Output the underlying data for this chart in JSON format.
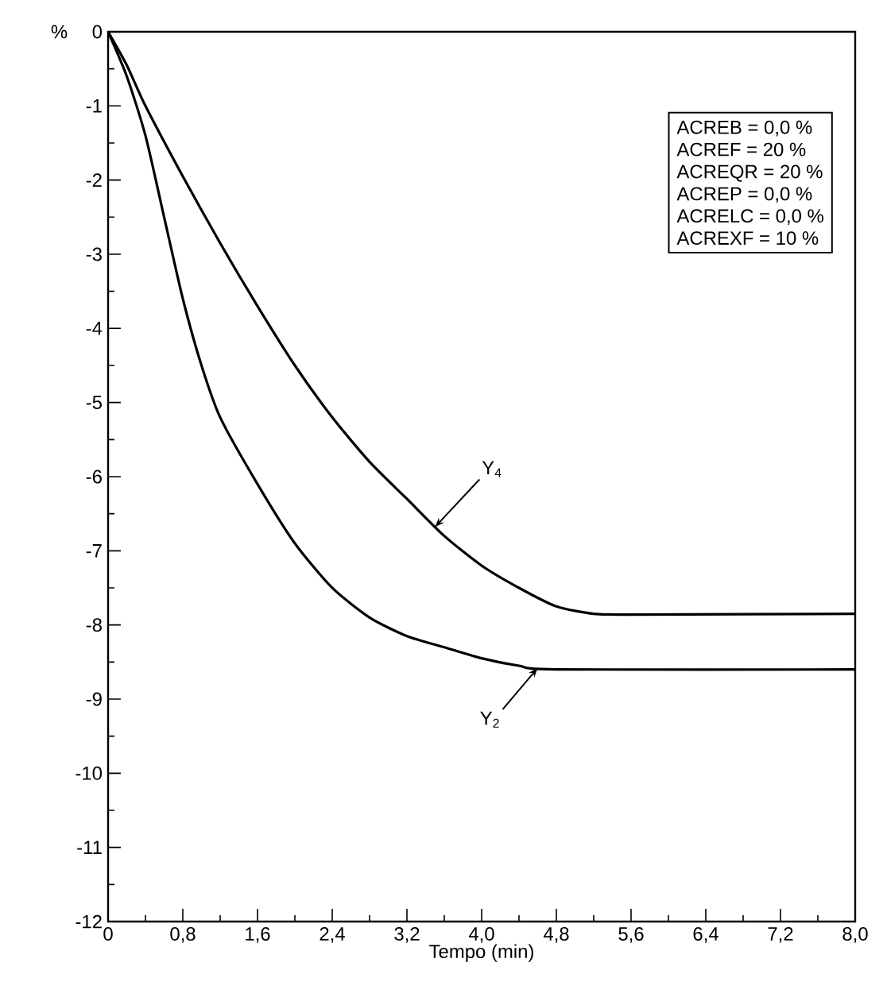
{
  "chart_data": {
    "type": "line",
    "xlabel": "Tempo (min)",
    "ylabel": "%",
    "xlim": [
      0,
      8.0
    ],
    "ylim": [
      -12,
      0
    ],
    "xticks": [
      0,
      {
        "value": 0.8,
        "label": "0,8"
      },
      {
        "value": 1.6,
        "label": "1,6"
      },
      {
        "value": 2.4,
        "label": "2,4"
      },
      {
        "value": 3.2,
        "label": "3,2"
      },
      {
        "value": 4.0,
        "label": "4,0"
      },
      {
        "value": 4.8,
        "label": "4,8"
      },
      {
        "value": 5.6,
        "label": "5,6"
      },
      {
        "value": 6.4,
        "label": "6,4"
      },
      {
        "value": 7.2,
        "label": "7,2"
      },
      {
        "value": 8.0,
        "label": "8,0"
      }
    ],
    "yticks": [
      0,
      -1,
      -2,
      -3,
      -4,
      -5,
      -6,
      -7,
      -8,
      -9,
      -10,
      -11,
      -12
    ],
    "marker": "none",
    "line_style": "solid",
    "series": [
      {
        "color": "#000000",
        "x": [
          0,
          0.2,
          0.4,
          0.8,
          1.2,
          1.6,
          2.0,
          2.4,
          2.8,
          3.2,
          3.6,
          4.0,
          4.4,
          4.8,
          5.2,
          5.6,
          8.0
        ],
        "values": [
          0,
          -0.45,
          -1.0,
          -1.95,
          -2.85,
          -3.7,
          -4.5,
          -5.2,
          -5.8,
          -6.3,
          -6.8,
          -7.2,
          -7.5,
          -7.75,
          -7.85,
          -7.86,
          -7.85
        ]
      },
      {
        "color": "#000000",
        "x": [
          0,
          0.2,
          0.4,
          0.6,
          0.8,
          1.0,
          1.2,
          1.6,
          2.0,
          2.4,
          2.8,
          3.2,
          3.6,
          4.0,
          4.4,
          4.8,
          8.0
        ],
        "values": [
          0,
          -0.6,
          -1.4,
          -2.5,
          -3.6,
          -4.5,
          -5.2,
          -6.1,
          -6.9,
          -7.5,
          -7.9,
          -8.15,
          -8.3,
          -8.45,
          -8.55,
          -8.6,
          -8.6
        ]
      }
    ],
    "annotations": [
      "ACREB = 0,0 %",
      "ACREF = 20 %",
      "ACREQR = 20 %",
      "ACREP = 0,0 %",
      "ACRELC = 0,0 %",
      "ACREXF = 10 %",
      {
        "text": "Y$_{4}$",
        "x": 3.5,
        "y": -6.68
      },
      {
        "text": "Y$_{2}$",
        "x": 4.6,
        "y": -8.58
      }
    ]
  }
}
